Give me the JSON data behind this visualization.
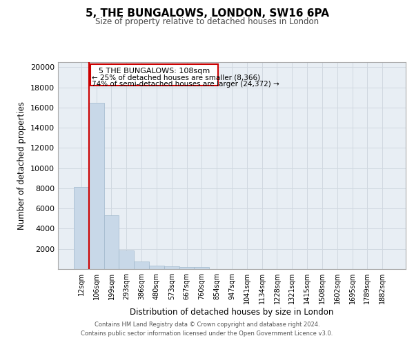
{
  "title_line1": "5, THE BUNGALOWS, LONDON, SW16 6PA",
  "title_line2": "Size of property relative to detached houses in London",
  "xlabel": "Distribution of detached houses by size in London",
  "ylabel": "Number of detached properties",
  "categories": [
    "12sqm",
    "106sqm",
    "199sqm",
    "293sqm",
    "386sqm",
    "480sqm",
    "573sqm",
    "667sqm",
    "760sqm",
    "854sqm",
    "947sqm",
    "1041sqm",
    "1134sqm",
    "1228sqm",
    "1321sqm",
    "1415sqm",
    "1508sqm",
    "1602sqm",
    "1695sqm",
    "1789sqm",
    "1882sqm"
  ],
  "values": [
    8100,
    16500,
    5350,
    1850,
    750,
    350,
    260,
    210,
    210,
    0,
    0,
    0,
    0,
    0,
    0,
    0,
    0,
    0,
    0,
    0,
    0
  ],
  "bar_color": "#c8d8e8",
  "bar_edge_color": "#a0b8cc",
  "annotation_text_line1": "5 THE BUNGALOWS: 108sqm",
  "annotation_text_line2": "← 25% of detached houses are smaller (8,366)",
  "annotation_text_line3": "74% of semi-detached houses are larger (24,372) →",
  "annotation_box_color": "#cc0000",
  "annotation_fill": "#ffffff",
  "vline_color": "#cc0000",
  "grid_color": "#d0d8e0",
  "background_color": "#e8eef4",
  "ylim": [
    0,
    20500
  ],
  "yticks": [
    0,
    2000,
    4000,
    6000,
    8000,
    10000,
    12000,
    14000,
    16000,
    18000,
    20000
  ],
  "footer_line1": "Contains HM Land Registry data © Crown copyright and database right 2024.",
  "footer_line2": "Contains public sector information licensed under the Open Government Licence v3.0."
}
